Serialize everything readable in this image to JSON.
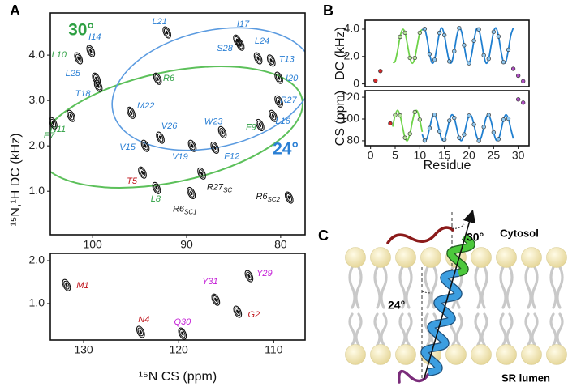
{
  "chart_data": [
    {
      "type": "scatter",
      "panel": "A",
      "ylabel": "¹⁵N,¹H DC (kHz)",
      "xlim": [
        104.5,
        77.4
      ],
      "ylim": [
        0.04,
        4.93
      ],
      "xticks": [
        100,
        90,
        80
      ],
      "yticks": [
        {
          "value": 1,
          "label": "1.0"
        },
        {
          "value": 2,
          "label": "2.0"
        },
        {
          "value": 3,
          "label": "3.0"
        },
        {
          "value": 4,
          "label": "4.0"
        }
      ],
      "annotations": [
        {
          "text": "30°",
          "color": "#2ea043"
        },
        {
          "text": "24°",
          "color": "#2a7fd4"
        }
      ],
      "labels": [
        "L21",
        "I17",
        "I14",
        "L10",
        "L24",
        "T13",
        "S28",
        "R6",
        "I20",
        "L25",
        "T18",
        "R27",
        "M22",
        "N11",
        "E7",
        "L16",
        "F9",
        "W23",
        "V26",
        "V15",
        "V19",
        "F12",
        "T5",
        {
          "text": "R27",
          "sub": "SC"
        },
        "L8",
        {
          "text": "R6",
          "sub": "SC1"
        },
        {
          "text": "R6",
          "sub": "SC2"
        }
      ],
      "x": [
        92.1,
        84.6,
        100.2,
        101.5,
        82.4,
        81.0,
        84.3,
        93.1,
        80.2,
        99.6,
        99.4,
        80.2,
        95.9,
        102.3,
        104.2,
        80.8,
        82.2,
        86.2,
        92.8,
        94.4,
        89.4,
        87.0,
        94.7,
        88.4,
        93.2,
        89.5,
        79.1
      ],
      "values": [
        4.5,
        4.32,
        4.09,
        3.93,
        3.93,
        3.88,
        4.23,
        3.48,
        3.5,
        3.48,
        3.32,
        2.98,
        2.73,
        2.66,
        2.5,
        2.66,
        2.46,
        2.3,
        2.18,
        2.0,
        2.0,
        1.96,
        1.41,
        1.39,
        1.07,
        0.96,
        0.86
      ],
      "label_colors": [
        "#2a7fd4",
        "#2a7fd4",
        "#2a7fd4",
        "#2ea043",
        "#2a7fd4",
        "#2a7fd4",
        "#2a7fd4",
        "#2ea043",
        "#2a7fd4",
        "#2a7fd4",
        "#2a7fd4",
        "#2a7fd4",
        "#2a7fd4",
        "#2ea043",
        "#2ea043",
        "#2a7fd4",
        "#2ea043",
        "#2a7fd4",
        "#2a7fd4",
        "#2a7fd4",
        "#2a7fd4",
        "#2a7fd4",
        "#c0141b",
        "#111111",
        "#2ea043",
        "#111111",
        "#111111"
      ]
    },
    {
      "type": "scatter",
      "xlabel": "¹⁵N CS (ppm)",
      "xlim": [
        133.5,
        106.7
      ],
      "ylim": [
        0.15,
        2.17
      ],
      "xticks": [
        130,
        120,
        110
      ],
      "yticks": [
        {
          "value": 1,
          "label": "1.0"
        },
        {
          "value": 2,
          "label": "2.0"
        }
      ],
      "labels": [
        "M1",
        "N4",
        "Q30",
        "Y31",
        "G2",
        "Y29"
      ],
      "x": [
        131.8,
        124.0,
        119.6,
        116.1,
        113.8,
        112.6
      ],
      "values": [
        1.43,
        0.34,
        0.3,
        1.09,
        0.81,
        1.64
      ],
      "label_colors": [
        "#c0141b",
        "#c0141b",
        "#c41fd6",
        "#c41fd6",
        "#c0141b",
        "#c41fd6"
      ]
    },
    {
      "type": "line",
      "panel": "B",
      "ylabel": "DC (kHz)",
      "xlim": [
        -1.1,
        32.2
      ],
      "ylim": [
        -0.2,
        4.65
      ],
      "yticks": [
        0,
        {
          "value": 2,
          "label": "2.0"
        },
        {
          "value": 4,
          "label": "4.0"
        }
      ],
      "series": [
        {
          "style": "line",
          "color": "#6fd34a",
          "x": [
            4.5,
            5,
            5.5,
            6,
            6.5,
            7,
            7.5,
            8,
            8.5,
            9,
            9.5,
            10,
            10.5
          ],
          "values": [
            1.57,
            1.65,
            2.44,
            3.44,
            3.98,
            3.74,
            2.85,
            1.9,
            1.5,
            1.9,
            2.85,
            3.74,
            3.98
          ]
        },
        {
          "style": "line",
          "color": "#1f7fd0",
          "x": [
            10.5,
            11,
            11.5,
            12,
            12.5,
            13,
            13.5,
            14,
            14.5,
            15,
            15.5,
            16,
            16.5,
            17,
            17.5,
            18,
            18.5,
            19,
            19.5,
            20,
            20.5,
            21,
            21.5,
            22,
            22.5,
            23,
            23.5,
            24,
            24.5,
            25,
            25.5,
            26,
            26.5,
            27,
            27.5,
            28,
            28.5,
            29
          ],
          "values": [
            3.93,
            4.02,
            3.27,
            2.18,
            1.53,
            1.76,
            2.72,
            3.73,
            4.09,
            3.56,
            2.49,
            1.64,
            1.6,
            2.39,
            3.47,
            4.08,
            3.8,
            2.83,
            1.83,
            1.51,
            2.09,
            3.16,
            3.98,
            3.98,
            3.16,
            2.09,
            1.51,
            1.83,
            2.83,
            3.8,
            4.08,
            3.47,
            2.39,
            1.59,
            1.64,
            2.5,
            3.56,
            4.09
          ]
        },
        {
          "style": "points",
          "color": "#d62728",
          "x": [
            1,
            2
          ],
          "values": [
            0.24,
            0.94
          ]
        },
        {
          "style": "points",
          "color": "#b5e39a",
          "x": [
            6,
            7,
            8,
            9,
            10
          ],
          "values": [
            3.44,
            3.74,
            1.9,
            1.9,
            3.74
          ]
        },
        {
          "style": "points",
          "color": "#8ec6ee",
          "x": [
            11,
            12,
            13,
            14,
            15,
            16,
            17,
            18,
            19,
            20,
            21,
            22,
            23,
            24,
            25,
            26,
            27,
            28
          ],
          "values": [
            4.02,
            2.18,
            1.76,
            3.73,
            3.56,
            1.64,
            2.39,
            4.08,
            2.83,
            1.51,
            3.16,
            3.98,
            2.09,
            1.83,
            3.8,
            3.47,
            1.59,
            2.5
          ]
        },
        {
          "style": "points",
          "color": "#b04fc4",
          "x": [
            29,
            30,
            31
          ],
          "values": [
            1.1,
            0.6,
            0.2
          ]
        }
      ]
    },
    {
      "type": "line",
      "ylabel": "CS (ppm)",
      "xlabel": "Residue",
      "xlim": [
        -1.1,
        32.2
      ],
      "ylim": [
        75.5,
        126
      ],
      "xticks": [
        0,
        5,
        10,
        15,
        20,
        25,
        30
      ],
      "yticks": [
        80,
        100,
        120
      ],
      "series": [
        {
          "style": "line",
          "color": "#6fd34a",
          "x": [
            4.5,
            5,
            5.5,
            6,
            6.5,
            7,
            7.5,
            8,
            8.5,
            9,
            9.5,
            10,
            10.5
          ],
          "values": [
            93.0,
            103.6,
            108.0,
            103.3,
            92.7,
            82.8,
            80.2,
            86.5,
            97.6,
            106.4,
            107.2,
            99.4,
            88.2
          ]
        },
        {
          "style": "line",
          "color": "#1f7fd0",
          "x": [
            10.5,
            11,
            11.5,
            12,
            12.5,
            13,
            13.5,
            14,
            14.5,
            15,
            15.5,
            16,
            16.5,
            17,
            17.5,
            18,
            18.5,
            19,
            19.5,
            20,
            20.5,
            21,
            21.5,
            22,
            22.5,
            23,
            23.5,
            24,
            24.5,
            25,
            25.5,
            26,
            26.5,
            27,
            27.5,
            28,
            28.5,
            29
          ],
          "values": [
            85.9,
            80.2,
            82.7,
            91.7,
            100.9,
            103.9,
            98.7,
            88.8,
            81.1,
            81.1,
            88.6,
            98.5,
            103.9,
            101.0,
            91.8,
            82.8,
            80.2,
            85.8,
            95.7,
            103.1,
            102.7,
            94.9,
            85.0,
            80.0,
            83.4,
            92.7,
            101.5,
            103.7,
            97.8,
            87.8,
            80.7,
            81.5,
            89.6,
            99.4,
            104.0,
            100.3,
            90.8,
            82.1
          ]
        },
        {
          "style": "points",
          "color": "#d62728",
          "x": [
            4
          ],
          "values": [
            96
          ]
        },
        {
          "style": "points",
          "color": "#b5e39a",
          "x": [
            5,
            6,
            7,
            8,
            9,
            10
          ],
          "values": [
            103.6,
            103.3,
            82.8,
            86.5,
            106.4,
            99.4
          ]
        },
        {
          "style": "points",
          "color": "#8ec6ee",
          "x": [
            11,
            12,
            13,
            14,
            15,
            16,
            17,
            18,
            19,
            20,
            21,
            22,
            23,
            24,
            25,
            26,
            27,
            28
          ],
          "values": [
            80.2,
            91.7,
            103.9,
            88.8,
            81.1,
            98.5,
            101.0,
            82.8,
            85.8,
            103.1,
            94.9,
            80.0,
            92.7,
            103.7,
            87.8,
            81.5,
            99.4,
            100.3
          ]
        },
        {
          "style": "points",
          "color": "#b04fc4",
          "x": [
            30,
            31
          ],
          "values": [
            118,
            115
          ]
        }
      ]
    }
  ],
  "panel_c": {
    "label": "C",
    "angle_top": "30°",
    "angle_tm": "24°",
    "top_side": "Cytosol",
    "bottom_side": "SR lumen"
  }
}
